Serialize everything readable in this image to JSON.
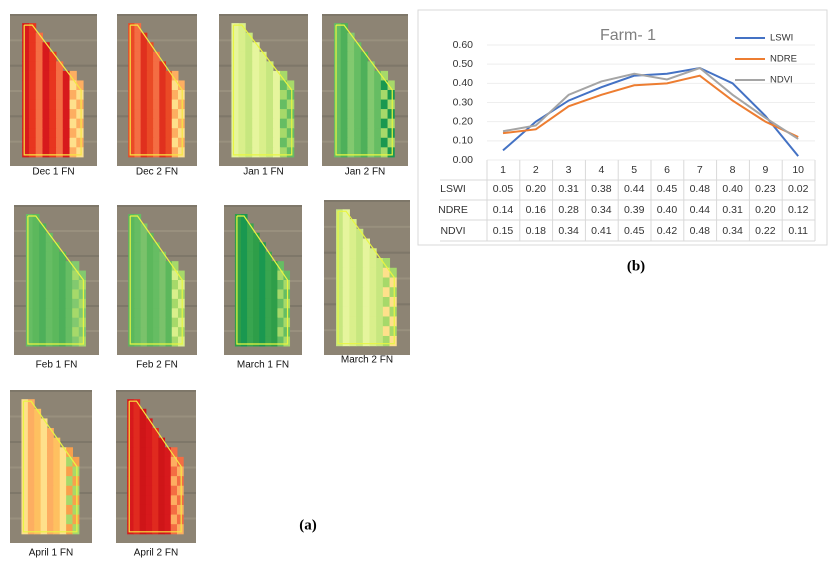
{
  "figure": {
    "panel_a_label": "(a)",
    "panel_b_label": "(b)",
    "thumbnails": [
      "Dec 1 FN",
      "Dec 2 FN",
      "Jan 1 FN",
      "Jan 2 FN",
      "Feb 1 FN",
      "Feb 2 FN",
      "March 1 FN",
      "March 2 FN",
      "April 1 FN",
      "April 2 FN"
    ]
  },
  "chart_data": {
    "type": "line",
    "title": "Farm- 1",
    "categories": [
      1,
      2,
      3,
      4,
      5,
      6,
      7,
      8,
      9,
      10
    ],
    "series": [
      {
        "name": "LSWI",
        "color": "#4472c4",
        "values": [
          0.05,
          0.2,
          0.31,
          0.38,
          0.44,
          0.45,
          0.48,
          0.4,
          0.23,
          0.02
        ],
        "value_labels": [
          "0.05",
          "0.20",
          "0.31",
          "0.38",
          "0.44",
          "0.45",
          "0.48",
          "0.40",
          "0.23",
          "0.02"
        ]
      },
      {
        "name": "NDRE",
        "color": "#ed7d31",
        "values": [
          0.14,
          0.16,
          0.28,
          0.34,
          0.39,
          0.4,
          0.44,
          0.31,
          0.2,
          0.12
        ],
        "value_labels": [
          "0.14",
          "0.16",
          "0.28",
          "0.34",
          "0.39",
          "0.40",
          "0.44",
          "0.31",
          "0.20",
          "0.12"
        ]
      },
      {
        "name": "NDVI",
        "color": "#a5a5a5",
        "values": [
          0.15,
          0.18,
          0.34,
          0.41,
          0.45,
          0.42,
          0.48,
          0.34,
          0.22,
          0.11
        ],
        "value_labels": [
          "0.15",
          "0.18",
          "0.34",
          "0.41",
          "0.45",
          "0.42",
          "0.48",
          "0.34",
          "0.22",
          "0.11"
        ]
      }
    ],
    "ylim": [
      0,
      0.6
    ],
    "yticks": [
      {
        "value": 0,
        "label": "0.00"
      },
      {
        "value": 0.1,
        "label": "0.10"
      },
      {
        "value": 0.2,
        "label": "0.20"
      },
      {
        "value": 0.3,
        "label": "0.30"
      },
      {
        "value": 0.4,
        "label": "0.40"
      },
      {
        "value": 0.5,
        "label": "0.50"
      },
      {
        "value": 0.6,
        "label": "0.60"
      }
    ],
    "grid": true
  }
}
